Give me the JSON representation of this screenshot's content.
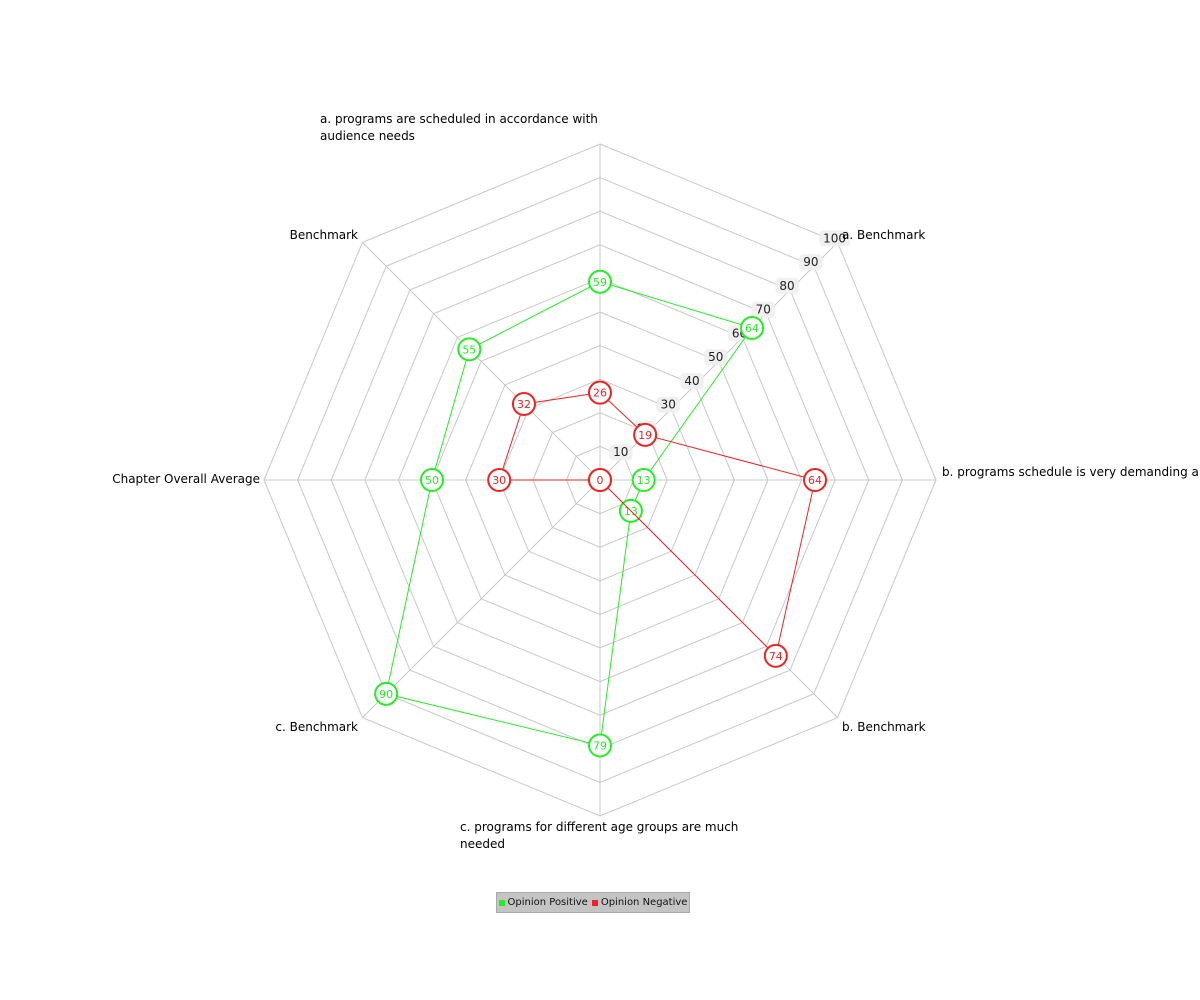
{
  "chart_data": {
    "type": "radar",
    "axes": [
      {
        "label": [
          "a. programs are scheduled in accordance with",
          "audience needs"
        ]
      },
      {
        "label": [
          "a. Benchmark"
        ]
      },
      {
        "label": [
          "b. programs schedule is very demanding a"
        ]
      },
      {
        "label": [
          "b. Benchmark"
        ]
      },
      {
        "label": [
          "c. programs for different age groups are much",
          "needed"
        ]
      },
      {
        "label": [
          "c. Benchmark"
        ]
      },
      {
        "label": [
          "Chapter Overall Average"
        ]
      },
      {
        "label": [
          "Benchmark"
        ]
      }
    ],
    "ticks": [
      10,
      20,
      30,
      40,
      50,
      60,
      70,
      80,
      90,
      100
    ],
    "range": [
      0,
      100
    ],
    "grid": true,
    "legend_position": "bottom",
    "series": [
      {
        "name": "Opinion Positive",
        "color": "#22ee22",
        "values": [
          59,
          64,
          13,
          13,
          79,
          90,
          50,
          55
        ]
      },
      {
        "name": "Opinion Negative",
        "color": "#ee2222",
        "values": [
          26,
          19,
          64,
          74,
          0,
          0,
          30,
          32
        ]
      }
    ]
  }
}
